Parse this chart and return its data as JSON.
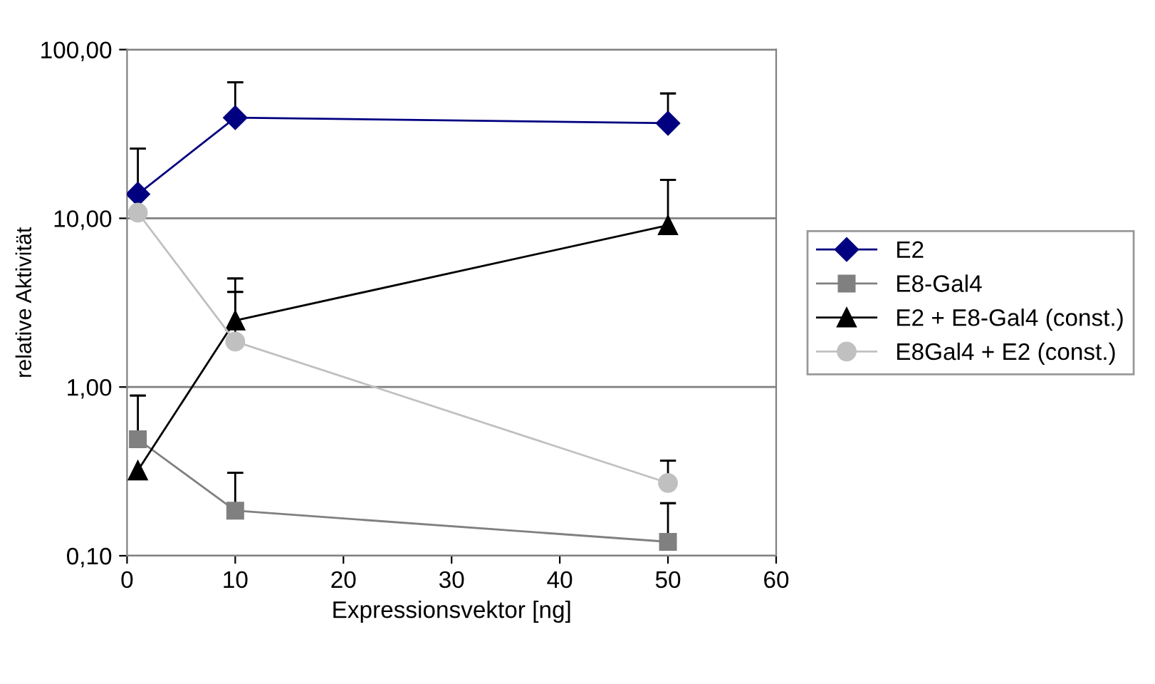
{
  "chart_data": {
    "type": "line",
    "xlabel": "Expressionsvektor [ng]",
    "ylabel": "relative Aktivität",
    "log": "y",
    "xlim": [
      0,
      60
    ],
    "xticks": [
      0,
      10,
      20,
      30,
      40,
      50,
      60
    ],
    "ylim": [
      0.1,
      100
    ],
    "yticks": [
      {
        "value": 0.1,
        "label": "0,10"
      },
      {
        "value": 1,
        "label": "1,00"
      },
      {
        "value": 10,
        "label": "10,00"
      },
      {
        "value": 100,
        "label": "100,00"
      }
    ],
    "grid": "y",
    "legend": "right",
    "x": [
      1,
      10,
      50
    ],
    "series": [
      {
        "name": "E2",
        "color": "#000080",
        "marker": "diamond",
        "values": [
          13.9,
          39.5,
          36.6
        ],
        "errors": [
          [
            13.9,
            25.9
          ],
          [
            39.5,
            64
          ],
          [
            36.6,
            55
          ]
        ]
      },
      {
        "name": "E8-Gal4",
        "color": "#808080",
        "marker": "square",
        "values": [
          0.49,
          0.185,
          0.121
        ],
        "errors": [
          [
            0.49,
            0.89
          ],
          [
            0.185,
            0.31
          ],
          [
            0.121,
            0.205
          ]
        ]
      },
      {
        "name": "E2 + E8-Gal4 (const.)",
        "color": "#000000",
        "marker": "triangle",
        "values": [
          0.32,
          2.48,
          9.1
        ],
        "errors": [
          null,
          [
            2.48,
            4.4
          ],
          [
            9.1,
            16.9
          ]
        ]
      },
      {
        "name": "E8Gal4 + E2 (const.)",
        "color": "#c0c0c0",
        "marker": "circle",
        "values": [
          10.8,
          1.86,
          0.27
        ],
        "errors": [
          null,
          [
            1.86,
            3.66
          ],
          [
            0.27,
            0.366
          ]
        ]
      }
    ]
  }
}
